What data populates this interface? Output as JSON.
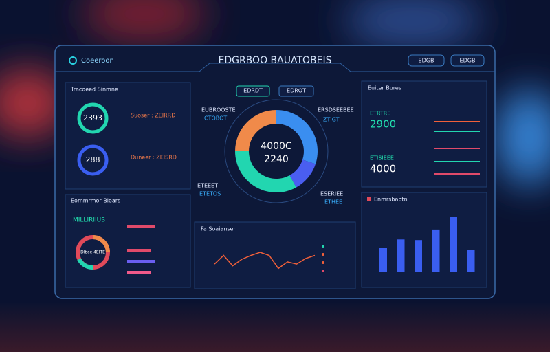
{
  "header": {
    "brand": "Coeeroon",
    "title": "EDGRBOO BAUATOBEIS",
    "buttons": [
      "EDGB",
      "EDGB"
    ]
  },
  "center": {
    "tabs": [
      "EDRDT",
      "EDROT"
    ],
    "donut_lines": [
      "4000C",
      "2240"
    ],
    "donut": {
      "segments": [
        {
          "color": "#3a8ef0",
          "value": 30
        },
        {
          "color": "#4a5ef0",
          "value": 12
        },
        {
          "color": "#22d6b0",
          "value": 33
        },
        {
          "color": "#f08a4a",
          "value": 25
        }
      ]
    },
    "callouts": [
      [
        "EUBROOSTE",
        "CTOBOT"
      ],
      [
        "ERSDSEEBEE",
        "ZTIGT"
      ],
      [
        "ETEEET",
        "ETETOS"
      ],
      [
        "ESERIEE",
        "ETHEE"
      ]
    ]
  },
  "left_top": {
    "title": "Tracoeed Sinmne",
    "rings": [
      {
        "value": "2393",
        "label": "Suoser : ZEIRRD"
      },
      {
        "value": "288",
        "label": "Duneer : ZEISRD"
      }
    ]
  },
  "left_bottom": {
    "title": "Eommrmor Blears",
    "subtitle": "MILLIRIIUS",
    "ring_label": "Dlbce 4EITE"
  },
  "line_panel": {
    "title": "Fa Soaiansen",
    "series": {
      "color": "#f0603a",
      "values": [
        38,
        58,
        34,
        49,
        58,
        65,
        58,
        28,
        43,
        38,
        51,
        58
      ]
    },
    "ylim": [
      0,
      100
    ]
  },
  "right_top": {
    "title": "Euiter Bures",
    "metrics": [
      {
        "label": "ETRTRE",
        "value": "2900"
      },
      {
        "label": "ETISIEEE",
        "value": "4000"
      }
    ]
  },
  "right_bottom": {
    "title": "Enmrsbabtn",
    "bars": {
      "color": "#3a5ef0",
      "values": [
        40,
        53,
        52,
        69,
        90,
        36
      ]
    },
    "ylim": [
      0,
      100
    ]
  }
}
